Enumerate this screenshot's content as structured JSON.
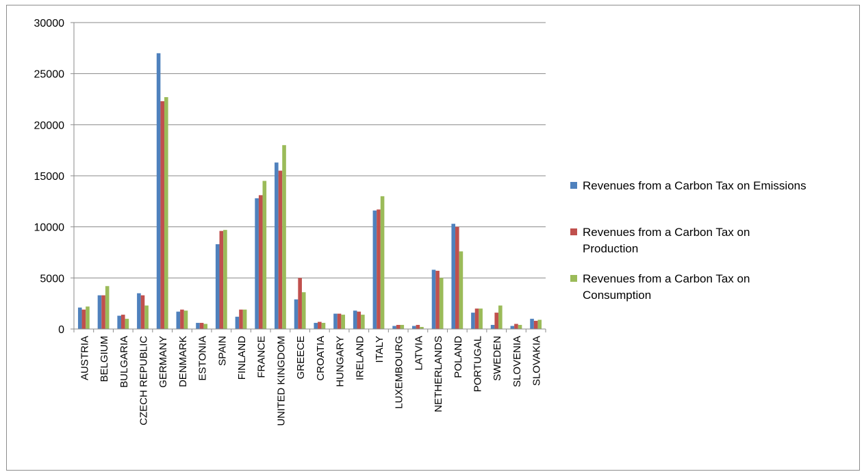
{
  "chart_data": {
    "type": "bar",
    "title": "",
    "xlabel": "",
    "ylabel": "",
    "ylim": [
      0,
      30000
    ],
    "yticks": [
      0,
      5000,
      10000,
      15000,
      20000,
      25000,
      30000
    ],
    "grid": true,
    "legend_position": "right",
    "categories": [
      "AUSTRIA",
      "BELGIUM",
      "BULGARIA",
      "CZECH REPUBLIC",
      "GERMANY",
      "DENMARK",
      "ESTONIA",
      "SPAIN",
      "FINLAND",
      "FRANCE",
      "UNITED KINGDOM",
      "GREECE",
      "CROATIA",
      "HUNGARY",
      "IRELAND",
      "ITALY",
      "LUXEMBOURG",
      "LATVIA",
      "NETHERLANDS",
      "POLAND",
      "PORTUGAL",
      "SWEDEN",
      "SLOVENIA",
      "SLOVAKIA"
    ],
    "series": [
      {
        "name": "Revenues from a Carbon Tax on Emissions",
        "name_lines": [
          "Revenues from a Carbon Tax on Emissions"
        ],
        "color": "#4f81bd",
        "values": [
          2100,
          3300,
          1300,
          3500,
          27000,
          1700,
          600,
          8300,
          1200,
          12800,
          16300,
          2900,
          600,
          1500,
          1800,
          11600,
          300,
          300,
          5800,
          10300,
          1600,
          400,
          300,
          1000
        ]
      },
      {
        "name": "Revenues from a Carbon Tax on Production",
        "name_lines": [
          "Revenues from a Carbon Tax on",
          "Production"
        ],
        "color": "#c0504d",
        "values": [
          1900,
          3300,
          1400,
          3300,
          22300,
          1900,
          600,
          9600,
          1900,
          13100,
          15500,
          5000,
          700,
          1500,
          1700,
          11700,
          400,
          400,
          5700,
          10000,
          2000,
          1600,
          500,
          800
        ]
      },
      {
        "name": "Revenues from a Carbon Tax on Consumption",
        "name_lines": [
          "Revenues from a Carbon Tax on",
          "Consumption"
        ],
        "color": "#9bbb59",
        "values": [
          2200,
          4200,
          1000,
          2300,
          22700,
          1800,
          500,
          9700,
          1900,
          14500,
          18000,
          3600,
          600,
          1400,
          1400,
          13000,
          400,
          200,
          5000,
          7600,
          2000,
          2300,
          400,
          900
        ]
      }
    ]
  }
}
